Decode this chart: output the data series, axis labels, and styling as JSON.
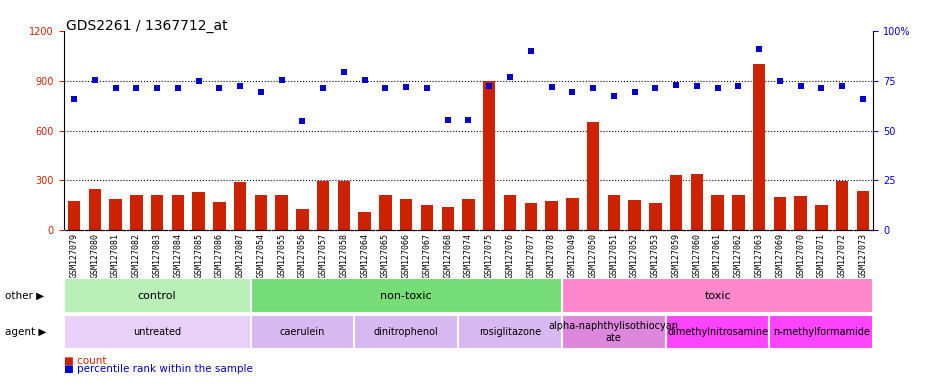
{
  "title": "GDS2261 / 1367712_at",
  "samples": [
    "GSM127079",
    "GSM127080",
    "GSM127081",
    "GSM127082",
    "GSM127083",
    "GSM127084",
    "GSM127085",
    "GSM127086",
    "GSM127087",
    "GSM127054",
    "GSM127055",
    "GSM127056",
    "GSM127057",
    "GSM127058",
    "GSM127064",
    "GSM127065",
    "GSM127066",
    "GSM127067",
    "GSM127068",
    "GSM127074",
    "GSM127075",
    "GSM127076",
    "GSM127077",
    "GSM127078",
    "GSM127049",
    "GSM127050",
    "GSM127051",
    "GSM127052",
    "GSM127053",
    "GSM127059",
    "GSM127060",
    "GSM127061",
    "GSM127062",
    "GSM127063",
    "GSM127069",
    "GSM127070",
    "GSM127071",
    "GSM127072",
    "GSM127073"
  ],
  "counts": [
    175,
    250,
    190,
    210,
    210,
    215,
    230,
    170,
    290,
    210,
    215,
    130,
    295,
    295,
    110,
    210,
    190,
    150,
    140,
    190,
    900,
    215,
    165,
    175,
    195,
    650,
    215,
    180,
    165,
    330,
    340,
    210,
    210,
    1000,
    200,
    205,
    155,
    295,
    235
  ],
  "percentile": [
    790,
    905,
    855,
    855,
    855,
    855,
    900,
    855,
    870,
    830,
    905,
    655,
    855,
    950,
    905,
    855,
    860,
    855,
    665,
    665,
    870,
    920,
    1080,
    860,
    830,
    855,
    810,
    830,
    855,
    875,
    870,
    855,
    870,
    1090,
    900,
    870,
    855,
    870,
    790
  ],
  "groups": [
    {
      "label": "control",
      "start": 0,
      "end": 9,
      "color": "#b8f0b8"
    },
    {
      "label": "non-toxic",
      "start": 9,
      "end": 24,
      "color": "#77dd77"
    },
    {
      "label": "toxic",
      "start": 24,
      "end": 39,
      "color": "#ff88cc"
    }
  ],
  "agents": [
    {
      "label": "untreated",
      "start": 0,
      "end": 9,
      "color": "#e8d0f8"
    },
    {
      "label": "caerulein",
      "start": 9,
      "end": 14,
      "color": "#d8b8f0"
    },
    {
      "label": "dinitrophenol",
      "start": 14,
      "end": 19,
      "color": "#d8b8f0"
    },
    {
      "label": "rosiglitazone",
      "start": 19,
      "end": 24,
      "color": "#d8b8f0"
    },
    {
      "label": "alpha-naphthylisothiocyan\nate",
      "start": 24,
      "end": 29,
      "color": "#dd88dd"
    },
    {
      "label": "dimethylnitrosamine",
      "start": 29,
      "end": 34,
      "color": "#ff44ff"
    },
    {
      "label": "n-methylformamide",
      "start": 34,
      "end": 39,
      "color": "#ff44ff"
    }
  ],
  "ylim_left": [
    0,
    1200
  ],
  "ylim_right": [
    0,
    100
  ],
  "yticks_left": [
    0,
    300,
    600,
    900,
    1200
  ],
  "yticks_right": [
    0,
    25,
    50,
    75,
    100
  ],
  "bar_color": "#cc2200",
  "dot_color": "#0000cc",
  "title_fontsize": 10,
  "tick_fontsize": 6,
  "label_fontsize": 8
}
